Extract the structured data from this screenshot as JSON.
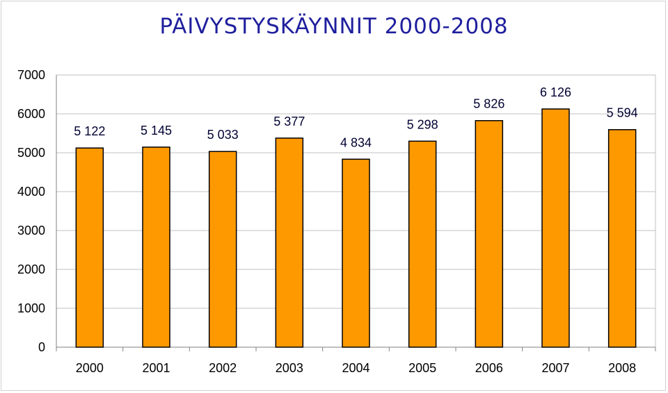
{
  "chart_data": {
    "type": "bar",
    "title": "PÄIVYSTYSKÄYNNIT 2000-2008",
    "xlabel": "",
    "ylabel": "",
    "categories": [
      "2000",
      "2001",
      "2002",
      "2003",
      "2004",
      "2005",
      "2006",
      "2007",
      "2008"
    ],
    "values": [
      5122,
      5145,
      5033,
      5377,
      4834,
      5298,
      5826,
      6126,
      5594
    ],
    "data_labels": [
      "5 122",
      "5 145",
      "5 033",
      "5 377",
      "4 834",
      "5 298",
      "5 826",
      "6 126",
      "5 594"
    ],
    "ylim": [
      0,
      7000
    ],
    "yticks": [
      0,
      1000,
      2000,
      3000,
      4000,
      5000,
      6000,
      7000
    ],
    "ytick_labels": [
      "0",
      "1000",
      "2000",
      "3000",
      "4000",
      "5000",
      "6000",
      "7000"
    ],
    "grid": true,
    "legend": "none",
    "bar_color": "#ff9900",
    "bar_edge_color": "#000000",
    "title_color": "#1f1f9e"
  }
}
